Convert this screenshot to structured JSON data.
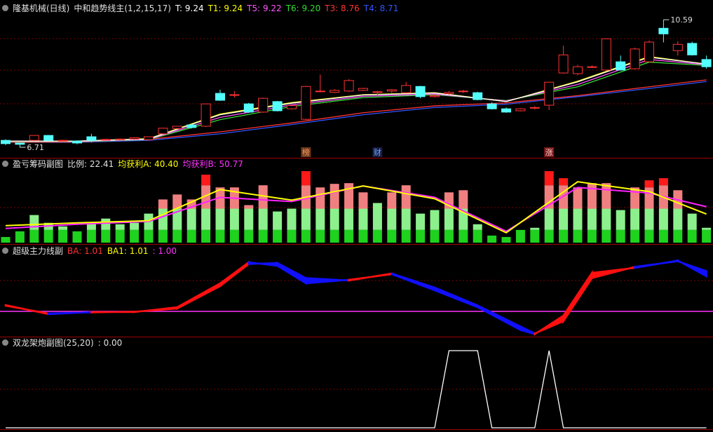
{
  "chart_data": [
    {
      "type": "candlestick",
      "header": [
        {
          "text": "隆基机械(日线)",
          "color": "#e0e0e0"
        },
        {
          "text": "中和趋势线主(1,2,15,17)",
          "color": "#e0e0e0"
        },
        {
          "text": "T: 9.24",
          "color": "#ffffff"
        },
        {
          "text": "T1: 9.24",
          "color": "#ffff00"
        },
        {
          "text": "T5: 9.22",
          "color": "#ff55ff"
        },
        {
          "text": "T6: 9.20",
          "color": "#33dd33"
        },
        {
          "text": "T3: 8.76",
          "color": "#ff3333"
        },
        {
          "text": "T4: 8.71",
          "color": "#3355ff"
        }
      ],
      "ylim": [
        6.39,
        11.19
      ],
      "up_color": "#ff3232",
      "down_color": "#54ffff",
      "ohlc": [
        [
          6.92,
          6.95,
          6.78,
          6.82
        ],
        [
          6.84,
          6.86,
          6.71,
          6.8
        ],
        [
          6.92,
          7.08,
          6.9,
          7.07
        ],
        [
          7.07,
          7.08,
          6.9,
          6.92
        ],
        [
          6.9,
          6.94,
          6.88,
          6.92
        ],
        [
          6.9,
          6.92,
          6.8,
          6.84
        ],
        [
          7.03,
          7.12,
          6.86,
          6.92
        ],
        [
          6.94,
          6.97,
          6.92,
          6.95
        ],
        [
          6.95,
          6.98,
          6.93,
          6.96
        ],
        [
          6.96,
          7.02,
          6.94,
          7.0
        ],
        [
          6.94,
          7.04,
          6.92,
          7.03
        ],
        [
          7.12,
          7.3,
          7.1,
          7.29
        ],
        [
          7.28,
          7.36,
          7.26,
          7.35
        ],
        [
          7.39,
          7.42,
          7.28,
          7.31
        ],
        [
          7.35,
          8.04,
          7.33,
          8.03
        ],
        [
          8.35,
          8.46,
          8.12,
          8.14
        ],
        [
          8.3,
          8.42,
          8.22,
          8.31
        ],
        [
          8.03,
          8.06,
          7.76,
          7.78
        ],
        [
          7.78,
          8.22,
          7.76,
          8.2
        ],
        [
          8.1,
          8.12,
          7.8,
          7.82
        ],
        [
          7.88,
          8.0,
          7.86,
          7.98
        ],
        [
          7.56,
          8.58,
          7.54,
          8.56
        ],
        [
          8.4,
          8.92,
          8.38,
          8.42
        ],
        [
          8.38,
          8.48,
          8.36,
          8.44
        ],
        [
          8.42,
          8.78,
          8.4,
          8.74
        ],
        [
          8.44,
          8.52,
          8.42,
          8.5
        ],
        [
          8.38,
          8.42,
          8.3,
          8.4
        ],
        [
          8.42,
          8.48,
          8.36,
          8.46
        ],
        [
          8.37,
          8.7,
          8.35,
          8.59
        ],
        [
          8.56,
          8.58,
          8.2,
          8.25
        ],
        [
          8.25,
          8.32,
          8.22,
          8.28
        ],
        [
          8.34,
          8.42,
          8.3,
          8.38
        ],
        [
          8.4,
          8.46,
          8.36,
          8.42
        ],
        [
          8.37,
          8.4,
          8.14,
          8.16
        ],
        [
          8.03,
          8.08,
          7.86,
          7.88
        ],
        [
          7.88,
          7.92,
          7.76,
          7.78
        ],
        [
          7.82,
          7.9,
          7.8,
          7.88
        ],
        [
          7.9,
          7.96,
          7.86,
          7.92
        ],
        [
          7.99,
          8.7,
          7.84,
          8.69
        ],
        [
          8.97,
          9.8,
          8.95,
          9.52
        ],
        [
          8.95,
          9.22,
          8.9,
          9.16
        ],
        [
          9.14,
          9.2,
          9.12,
          9.16
        ],
        [
          9.06,
          10.02,
          9.04,
          10.01
        ],
        [
          9.31,
          9.5,
          9.04,
          9.06
        ],
        [
          9.1,
          9.74,
          9.08,
          9.7
        ],
        [
          9.31,
          9.96,
          9.29,
          9.91
        ],
        [
          10.33,
          10.59,
          9.9,
          10.16
        ],
        [
          9.65,
          9.94,
          9.5,
          9.84
        ],
        [
          9.87,
          9.92,
          9.5,
          9.52
        ],
        [
          9.38,
          9.5,
          9.1,
          9.16
        ]
      ],
      "series": [
        {
          "color": "#3355ff",
          "x": [
            0,
            5,
            10,
            15,
            20,
            25,
            30,
            35,
            40,
            45,
            49
          ],
          "values": [
            6.86,
            6.86,
            6.92,
            7.12,
            7.4,
            7.7,
            7.92,
            8.02,
            8.25,
            8.5,
            8.71
          ]
        },
        {
          "color": "#ff3333",
          "x": [
            0,
            5,
            10,
            15,
            20,
            25,
            30,
            35,
            40,
            45,
            49
          ],
          "values": [
            6.86,
            6.87,
            6.95,
            7.18,
            7.45,
            7.76,
            7.97,
            8.06,
            8.28,
            8.55,
            8.76
          ]
        },
        {
          "color": "#33dd33",
          "x": [
            0,
            5,
            10,
            15,
            20,
            25,
            30,
            35,
            40,
            45,
            49
          ],
          "values": [
            6.88,
            6.88,
            6.94,
            7.55,
            7.95,
            8.22,
            8.31,
            8.13,
            8.55,
            9.3,
            9.2
          ]
        },
        {
          "color": "#ff55ff",
          "x": [
            0,
            5,
            10,
            15,
            20,
            25,
            30,
            35,
            40,
            45,
            49
          ],
          "values": [
            6.89,
            6.89,
            6.95,
            7.62,
            8.0,
            8.26,
            8.33,
            8.12,
            8.62,
            9.38,
            9.22
          ]
        },
        {
          "color": "#ffff00",
          "x": [
            0,
            5,
            10,
            15,
            20,
            25,
            30,
            35,
            40,
            45,
            49
          ],
          "values": [
            6.9,
            6.9,
            6.97,
            7.72,
            8.07,
            8.31,
            8.37,
            8.1,
            8.72,
            9.47,
            9.24
          ]
        },
        {
          "color": "#ffffff",
          "x": [
            0,
            5,
            10,
            15,
            20,
            25,
            30,
            35,
            40,
            45,
            49
          ],
          "values": [
            6.9,
            6.9,
            6.96,
            7.7,
            8.05,
            8.3,
            8.36,
            8.1,
            8.7,
            9.45,
            9.24
          ]
        }
      ],
      "price_labels": [
        {
          "x": 46,
          "value": 10.59,
          "label": "10.59"
        },
        {
          "x": 1,
          "value": 6.71,
          "label": "6.71"
        }
      ],
      "markers": [
        {
          "x": 21,
          "text": "榜",
          "color": "#ff9966",
          "background": "#6b3a1a"
        },
        {
          "x": 26,
          "text": "财",
          "color": "#66aaff",
          "background": "#1a1a40"
        },
        {
          "x": 38,
          "text": "涨",
          "color": "#ffcccc",
          "background": "#7a1a1a"
        }
      ]
    },
    {
      "type": "stacked-bar",
      "header": [
        {
          "text": "盈亏筹码副图",
          "color": "#e0e0e0"
        },
        {
          "text": "比例: 22.41",
          "color": "#e0e0e0"
        },
        {
          "text": "均获利A: 40.40",
          "color": "#ffff00"
        },
        {
          "text": "均获利B: 50.77",
          "color": "#ff33ff"
        }
      ],
      "ylim": [
        0,
        100
      ],
      "series": [
        {
          "color": "#1ed21e",
          "values": [
            8,
            16,
            18,
            18,
            18,
            16,
            18,
            18,
            18,
            18,
            18,
            18,
            18,
            18,
            18,
            18,
            18,
            18,
            18,
            18,
            18,
            18,
            18,
            18,
            18,
            18,
            18,
            18,
            18,
            18,
            18,
            18,
            18,
            18,
            10,
            8,
            18,
            18,
            18,
            18,
            18,
            18,
            18,
            18,
            18,
            18,
            18,
            18,
            18,
            18
          ]
        },
        {
          "color": "#8cf08c",
          "values": [
            0,
            0,
            21,
            10,
            5,
            0,
            10,
            16,
            8,
            10,
            23,
            30,
            30,
            30,
            30,
            30,
            30,
            30,
            30,
            26,
            30,
            30,
            30,
            30,
            30,
            30,
            38,
            30,
            30,
            23,
            28,
            30,
            30,
            8,
            0,
            0,
            0,
            3,
            30,
            30,
            30,
            30,
            30,
            28,
            30,
            30,
            30,
            30,
            23,
            3
          ]
        },
        {
          "color": "#f08080",
          "values": [
            0,
            0,
            0,
            0,
            0,
            0,
            0,
            0,
            0,
            0,
            0,
            13,
            20,
            13,
            33,
            30,
            30,
            5,
            33,
            0,
            0,
            33,
            30,
            35,
            36,
            23,
            0,
            23,
            33,
            0,
            0,
            23,
            26,
            0,
            0,
            0,
            0,
            0,
            33,
            33,
            30,
            36,
            36,
            0,
            30,
            30,
            33,
            26,
            0,
            0
          ]
        },
        {
          "color": "#ff1a1a",
          "values": [
            0,
            0,
            0,
            0,
            0,
            0,
            0,
            0,
            0,
            0,
            0,
            0,
            0,
            0,
            15,
            0,
            0,
            0,
            0,
            0,
            0,
            20,
            0,
            0,
            0,
            0,
            0,
            0,
            0,
            0,
            0,
            0,
            0,
            0,
            0,
            0,
            0,
            0,
            20,
            10,
            0,
            0,
            0,
            0,
            0,
            10,
            10,
            0,
            0,
            0
          ]
        }
      ],
      "lines": [
        {
          "color": "#ff22ff",
          "x": [
            0,
            5,
            10,
            15,
            20,
            25,
            30,
            35,
            40,
            45,
            49
          ],
          "values": [
            20,
            26,
            30,
            64,
            58,
            80,
            64,
            16,
            78,
            70,
            50.77
          ]
        },
        {
          "color": "#ffff00",
          "x": [
            0,
            5,
            10,
            15,
            20,
            25,
            30,
            35,
            40,
            45,
            49
          ],
          "values": [
            24,
            28,
            31,
            75,
            60,
            80,
            62,
            14,
            86,
            72,
            40.4
          ]
        }
      ]
    },
    {
      "type": "band",
      "header": [
        {
          "text": "超级主力线副",
          "color": "#e0e0e0"
        },
        {
          "text": "BA: 1.01",
          "color": "#ff3333"
        },
        {
          "text": "BA1: 1.01",
          "color": "#ffff00"
        },
        {
          "text": ": 1.00",
          "color": "#ff33ff"
        }
      ],
      "ylim": [
        0.9924,
        1.0184
      ],
      "level": 1,
      "level_color": "#ff33ff",
      "rise_color": "#ff1010",
      "fall_color": "#1010ff",
      "x": [
        0,
        3,
        6,
        9,
        12,
        15,
        17,
        19,
        21,
        24,
        27,
        30,
        33,
        36,
        37,
        39,
        41,
        44,
        47,
        49
      ],
      "series": [
        {
          "values": [
            1.0018,
            0.9992,
            0.9998,
            0.9998,
            1.0012,
            1.008,
            1.014,
            1.013,
            1.008,
            1.009,
            1.0106,
            1.006,
            1.0012,
            0.9947,
            0.9935,
            0.9988,
            1.011,
            1.0124,
            1.0145,
            1.01
          ]
        },
        {
          "values": [
            1.0016,
            0.9994,
            0.9997,
            0.9999,
            1.0008,
            1.0072,
            1.0135,
            1.0138,
            1.0095,
            1.0088,
            1.0108,
            1.0068,
            1.0017,
            0.9957,
            0.9937,
            0.9972,
            1.0095,
            1.0127,
            1.0143,
            1.0115
          ]
        }
      ]
    },
    {
      "type": "line",
      "header": [
        {
          "text": "双龙架炮副图(25,20)",
          "color": "#e0e0e0"
        },
        {
          "text": ": 0.00",
          "color": "#e0e0e0"
        }
      ],
      "ylim": [
        0,
        1
      ],
      "color": "#ffffff",
      "values": [
        0,
        0,
        0,
        0,
        0,
        0,
        0,
        0,
        0,
        0,
        0,
        0,
        0,
        0,
        0,
        0,
        0,
        0,
        0,
        0,
        0,
        0,
        0,
        0,
        0,
        0,
        0,
        0,
        0,
        0,
        0,
        1,
        1,
        1,
        0,
        0,
        0,
        0,
        1,
        0,
        0,
        0,
        0,
        0,
        0,
        0,
        0,
        0,
        0,
        0
      ]
    }
  ]
}
